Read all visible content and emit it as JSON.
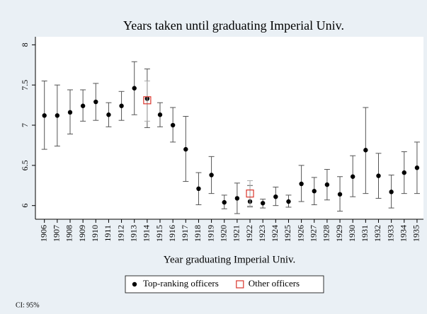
{
  "chart_data": {
    "type": "errorbar",
    "title": "Years taken until graduating Imperial Univ.",
    "xlabel": "Year graduating Imperial Univ.",
    "note": "CI: 95%",
    "xlim": [
      1905.3,
      1935.5
    ],
    "xticks": [
      1906,
      1907,
      1908,
      1909,
      1910,
      1911,
      1912,
      1913,
      1914,
      1915,
      1916,
      1917,
      1918,
      1919,
      1920,
      1921,
      1922,
      1923,
      1924,
      1925,
      1926,
      1927,
      1928,
      1929,
      1930,
      1931,
      1932,
      1933,
      1934,
      1935
    ],
    "ylim": [
      5.83,
      8.1
    ],
    "yticks": [
      {
        "value": 6,
        "label": "6"
      },
      {
        "value": 6.5,
        "label": "6.5"
      },
      {
        "value": 7,
        "label": "7"
      },
      {
        "value": 7.5,
        "label": "7.5"
      },
      {
        "value": 8,
        "label": "8"
      }
    ],
    "legend": "bottom",
    "series": [
      {
        "name": "Top-ranking officers",
        "color": "#000000",
        "marker": "dot",
        "x": [
          1906,
          1907,
          1908,
          1909,
          1910,
          1911,
          1912,
          1913,
          1914,
          1915,
          1916,
          1917,
          1918,
          1919,
          1920,
          1921,
          1922,
          1923,
          1924,
          1925,
          1926,
          1927,
          1928,
          1929,
          1930,
          1931,
          1932,
          1933,
          1934,
          1935
        ],
        "values": [
          7.12,
          7.12,
          7.16,
          7.24,
          7.29,
          7.13,
          7.24,
          7.46,
          7.33,
          7.13,
          7.0,
          6.7,
          6.21,
          6.38,
          6.04,
          6.09,
          6.05,
          6.03,
          6.11,
          6.05,
          6.27,
          6.18,
          6.26,
          6.14,
          6.36,
          6.69,
          6.37,
          6.17,
          6.41,
          6.47
        ],
        "low": [
          6.7,
          6.74,
          6.89,
          7.05,
          7.06,
          6.98,
          7.06,
          7.13,
          6.97,
          6.98,
          6.79,
          6.3,
          6.01,
          6.15,
          5.96,
          5.9,
          5.99,
          5.97,
          6.0,
          5.98,
          6.05,
          6.01,
          6.07,
          5.93,
          6.11,
          6.15,
          6.09,
          5.97,
          6.15,
          6.15
        ],
        "high": [
          7.55,
          7.5,
          7.44,
          7.44,
          7.52,
          7.28,
          7.42,
          7.79,
          7.7,
          7.28,
          7.22,
          7.11,
          6.41,
          6.61,
          6.13,
          6.28,
          6.25,
          6.08,
          6.23,
          6.13,
          6.5,
          6.35,
          6.45,
          6.36,
          6.62,
          7.22,
          6.65,
          6.38,
          6.67,
          6.79
        ]
      },
      {
        "name": "Other officers",
        "color": "#d9342b",
        "marker": "square",
        "barcolor": "#aaaaaa",
        "x": [
          1914,
          1922
        ],
        "values": [
          7.31,
          6.15
        ],
        "low": [
          7.05,
          5.98
        ],
        "high": [
          7.55,
          6.31
        ]
      }
    ]
  }
}
